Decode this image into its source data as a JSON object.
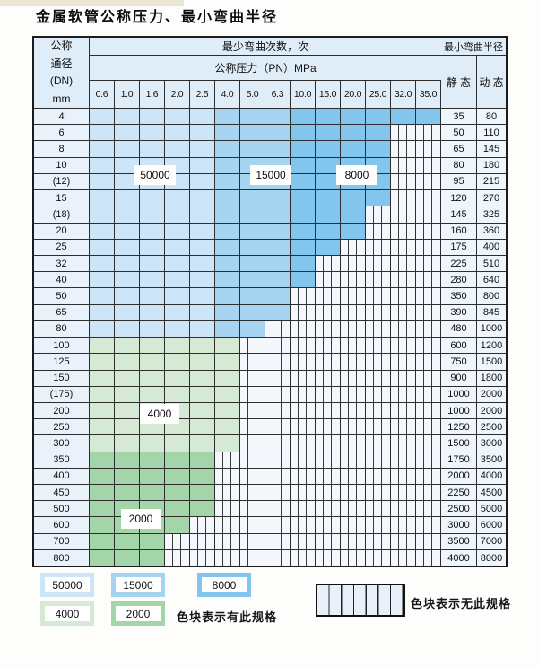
{
  "title": "金属软管公称压力、最小弯曲半径",
  "colors": {
    "blue_50000": "#cde5f6",
    "blue_15000": "#a6d4f0",
    "blue_8000": "#82c6ed",
    "green_4000": "#d6e9d4",
    "green_2000": "#a3d5a9",
    "hatch_bg": "#f4f8fc",
    "header_bg": "#dfedf8",
    "dn_bg": "#e9f2fb",
    "value_bg": "#eef5fc"
  },
  "table": {
    "header": {
      "dn_lines": [
        "公称",
        "通径",
        "(DN)",
        "mm"
      ],
      "bend_cycles": "最少弯曲次数，次",
      "pressure": "公称压力（PN）MPa",
      "min_bend_radius": "最小弯曲半径",
      "static": "静 态",
      "dynamic": "动 态",
      "pressure_values": [
        "0.6",
        "1.0",
        "1.6",
        "2.0",
        "2.5",
        "4.0",
        "5.0",
        "6.3",
        "10.0",
        "15.0",
        "20.0",
        "25.0",
        "32.0",
        "35.0"
      ]
    },
    "bands": {
      "blue_rows_last_index": 13,
      "light_green_rows_last_index": 20,
      "blue_col_band1_last_index": 4,
      "blue_col_band2_last_index": 7
    },
    "rows": [
      {
        "dn": "4",
        "colored": 14,
        "static": "35",
        "dynamic": "80"
      },
      {
        "dn": "6",
        "colored": 12,
        "static": "50",
        "dynamic": "110"
      },
      {
        "dn": "8",
        "colored": 12,
        "static": "65",
        "dynamic": "145"
      },
      {
        "dn": "10",
        "colored": 12,
        "static": "80",
        "dynamic": "180"
      },
      {
        "dn": "(12)",
        "colored": 12,
        "static": "95",
        "dynamic": "215"
      },
      {
        "dn": "15",
        "colored": 12,
        "static": "120",
        "dynamic": "270"
      },
      {
        "dn": "(18)",
        "colored": 11,
        "static": "145",
        "dynamic": "325"
      },
      {
        "dn": "20",
        "colored": 11,
        "static": "160",
        "dynamic": "360"
      },
      {
        "dn": "25",
        "colored": 10,
        "static": "175",
        "dynamic": "400"
      },
      {
        "dn": "32",
        "colored": 9,
        "static": "225",
        "dynamic": "510"
      },
      {
        "dn": "40",
        "colored": 9,
        "static": "280",
        "dynamic": "640"
      },
      {
        "dn": "50",
        "colored": 8,
        "static": "350",
        "dynamic": "800"
      },
      {
        "dn": "65",
        "colored": 8,
        "static": "390",
        "dynamic": "845"
      },
      {
        "dn": "80",
        "colored": 7,
        "static": "480",
        "dynamic": "1000"
      },
      {
        "dn": "100",
        "colored": 6,
        "static": "600",
        "dynamic": "1200"
      },
      {
        "dn": "125",
        "colored": 6,
        "static": "750",
        "dynamic": "1500"
      },
      {
        "dn": "150",
        "colored": 6,
        "static": "900",
        "dynamic": "1800"
      },
      {
        "dn": "(175)",
        "colored": 6,
        "static": "1000",
        "dynamic": "2000"
      },
      {
        "dn": "200",
        "colored": 6,
        "static": "1000",
        "dynamic": "2000"
      },
      {
        "dn": "250",
        "colored": 6,
        "static": "1250",
        "dynamic": "2500"
      },
      {
        "dn": "300",
        "colored": 6,
        "static": "1500",
        "dynamic": "3000"
      },
      {
        "dn": "350",
        "colored": 5,
        "static": "1750",
        "dynamic": "3500"
      },
      {
        "dn": "400",
        "colored": 5,
        "static": "2000",
        "dynamic": "4000"
      },
      {
        "dn": "450",
        "colored": 5,
        "static": "2250",
        "dynamic": "4500"
      },
      {
        "dn": "500",
        "colored": 5,
        "static": "2500",
        "dynamic": "5000"
      },
      {
        "dn": "600",
        "colored": 4,
        "static": "3000",
        "dynamic": "6000"
      },
      {
        "dn": "700",
        "colored": 3,
        "static": "3500",
        "dynamic": "7000"
      },
      {
        "dn": "800",
        "colored": 3,
        "static": "4000",
        "dynamic": "8000"
      }
    ]
  },
  "cycle_labels": [
    "50000",
    "15000",
    "8000",
    "4000",
    "2000"
  ],
  "legend": {
    "items": [
      {
        "label": "50000",
        "color_key": "blue_50000"
      },
      {
        "label": "15000",
        "color_key": "blue_15000"
      },
      {
        "label": "8000",
        "color_key": "blue_8000"
      },
      {
        "label": "4000",
        "color_key": "green_4000"
      },
      {
        "label": "2000",
        "color_key": "green_2000"
      }
    ],
    "exists_text": "色块表示有此规格",
    "not_exists_text": "色块表示无此规格"
  }
}
